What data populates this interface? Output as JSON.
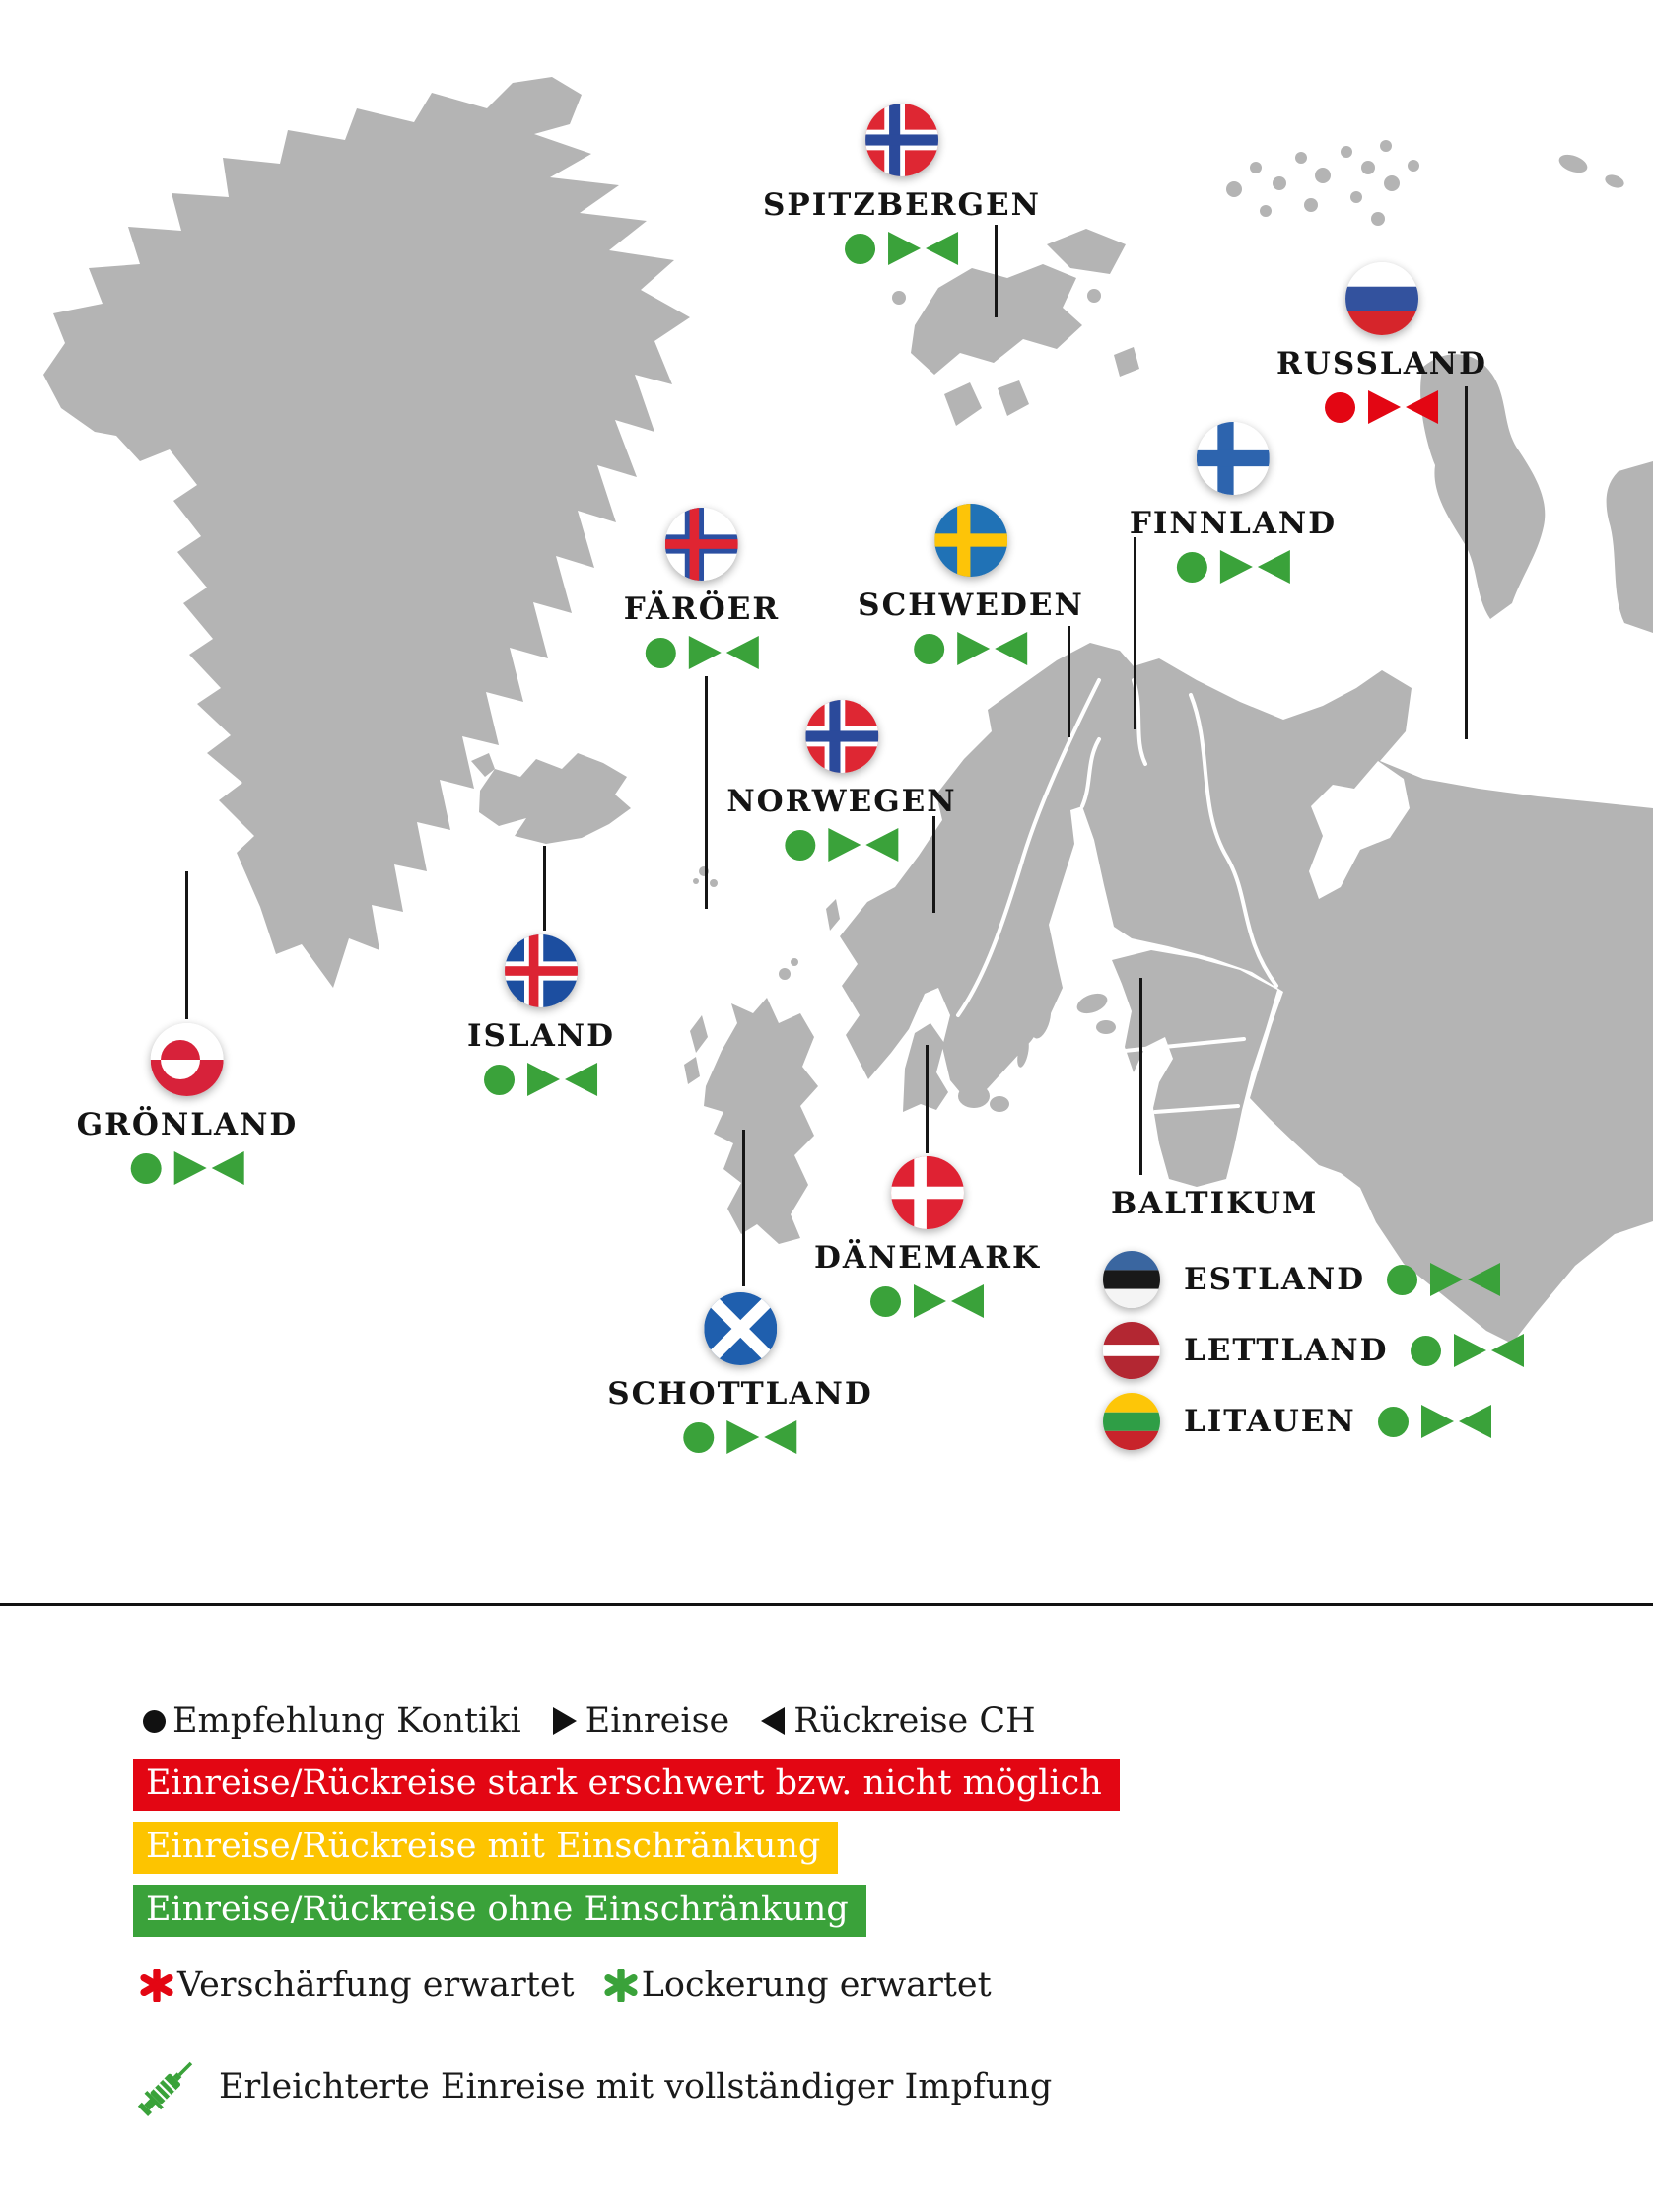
{
  "colors": {
    "green": "#3aa23a",
    "red": "#e30613",
    "yellow": "#fdc400",
    "land": "#b4b4b4",
    "ink": "#1a1a1a"
  },
  "map": {
    "countries": [
      {
        "id": "spitzbergen",
        "label": "SPITZBERGEN",
        "flag": "norway",
        "status": [
          "green",
          "green",
          "green"
        ]
      },
      {
        "id": "russland",
        "label": "RUSSLAND",
        "flag": "russia",
        "status": [
          "red",
          "red",
          "red"
        ]
      },
      {
        "id": "finnland",
        "label": "FINNLAND",
        "flag": "finland",
        "status": [
          "green",
          "green",
          "green"
        ]
      },
      {
        "id": "schweden",
        "label": "SCHWEDEN",
        "flag": "sweden",
        "status": [
          "green",
          "green",
          "green"
        ]
      },
      {
        "id": "faeroeer",
        "label": "FÄRÖER",
        "flag": "faroe",
        "status": [
          "green",
          "green",
          "green"
        ]
      },
      {
        "id": "norwegen",
        "label": "NORWEGEN",
        "flag": "norway",
        "status": [
          "green",
          "green",
          "green"
        ]
      },
      {
        "id": "island",
        "label": "ISLAND",
        "flag": "iceland",
        "status": [
          "green",
          "green",
          "green"
        ]
      },
      {
        "id": "groenland",
        "label": "GRÖNLAND",
        "flag": "greenland",
        "status": [
          "green",
          "green",
          "green"
        ]
      },
      {
        "id": "daenemark",
        "label": "DÄNEMARK",
        "flag": "denmark",
        "status": [
          "green",
          "green",
          "green"
        ]
      },
      {
        "id": "schottland",
        "label": "SCHOTTLAND",
        "flag": "scotland",
        "status": [
          "green",
          "green",
          "green"
        ]
      }
    ],
    "baltikum": {
      "label": "BALTIKUM",
      "rows": [
        {
          "id": "estland",
          "label": "ESTLAND",
          "flag": "estonia",
          "status": [
            "green",
            "green",
            "green"
          ]
        },
        {
          "id": "lettland",
          "label": "LETTLAND",
          "flag": "latvia",
          "status": [
            "green",
            "green",
            "green"
          ]
        },
        {
          "id": "litauen",
          "label": "LITAUEN",
          "flag": "lithuania",
          "status": [
            "green",
            "green",
            "green"
          ]
        }
      ]
    }
  },
  "legend": {
    "key": [
      {
        "symbol": "circle",
        "label": "Empfehlung Kontiki"
      },
      {
        "symbol": "triangle-right",
        "label": "Einreise"
      },
      {
        "symbol": "triangle-left",
        "label": "Rückreise CH"
      }
    ],
    "bars": [
      {
        "color": "#e30613",
        "text": "Einreise/Rückreise stark erschwert bzw. nicht möglich"
      },
      {
        "color": "#fdc400",
        "text": "Einreise/Rückreise mit Einschränkung"
      },
      {
        "color": "#3aa23a",
        "text": "Einreise/Rückreise ohne Einschränkung"
      }
    ],
    "expectations": [
      {
        "color": "#e30613",
        "label": "Verschärfung erwartet"
      },
      {
        "color": "#3aa23a",
        "label": "Lockerung erwartet"
      }
    ],
    "vaccination": {
      "label": "Erleichterte Einreise mit vollständiger Impfung"
    }
  }
}
